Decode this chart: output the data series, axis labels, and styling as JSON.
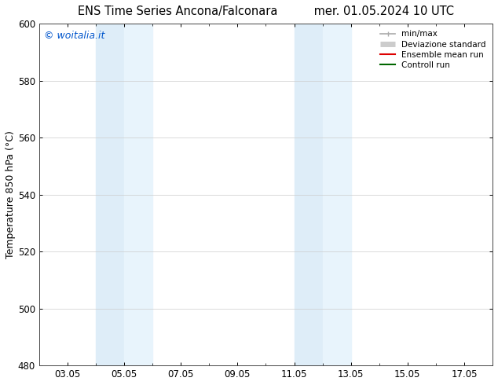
{
  "title_left": "ENS Time Series Ancona/Falconara",
  "title_right": "mer. 01.05.2024 10 UTC",
  "ylabel": "Temperature 850 hPa (°C)",
  "watermark": "© woitalia.it",
  "watermark_color": "#0055cc",
  "ylim": [
    480,
    600
  ],
  "yticks": [
    480,
    500,
    520,
    540,
    560,
    580,
    600
  ],
  "xtick_labels": [
    "03.05",
    "05.05",
    "07.05",
    "09.05",
    "11.05",
    "13.05",
    "15.05",
    "17.05"
  ],
  "xtick_positions": [
    3,
    5,
    7,
    9,
    11,
    13,
    15,
    17
  ],
  "xlim": [
    2,
    18
  ],
  "shaded_bands": [
    {
      "xmin": 4.0,
      "xmax": 5.0,
      "color": "#deedf8"
    },
    {
      "xmin": 5.0,
      "xmax": 6.0,
      "color": "#e8f4fc"
    },
    {
      "xmin": 11.0,
      "xmax": 12.0,
      "color": "#deedf8"
    },
    {
      "xmin": 12.0,
      "xmax": 13.0,
      "color": "#e8f4fc"
    }
  ],
  "background_color": "#ffffff",
  "legend_entries": [
    {
      "label": "min/max",
      "color": "#aaaaaa",
      "lw": 1.2
    },
    {
      "label": "Deviazione standard",
      "color": "#cccccc",
      "lw": 5
    },
    {
      "label": "Ensemble mean run",
      "color": "#dd0000",
      "lw": 1.5
    },
    {
      "label": "Controll run",
      "color": "#006600",
      "lw": 1.5
    }
  ],
  "grid_color": "#cccccc",
  "tick_fontsize": 8.5,
  "label_fontsize": 9,
  "title_fontsize": 10.5
}
